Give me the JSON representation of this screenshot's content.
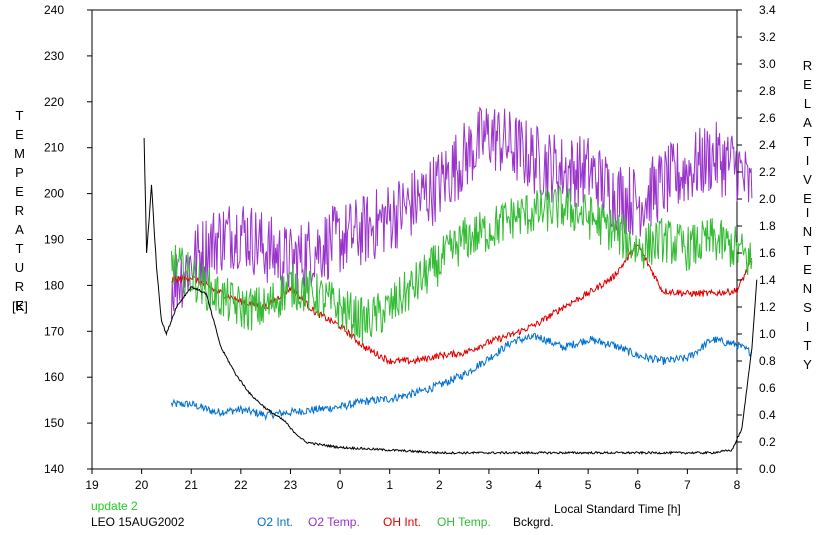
{
  "labels": {
    "left_axis": "TEMPERATURE",
    "left_unit": "[K]",
    "right_axis_1": "RELATIVE",
    "right_axis_2": "INTENSITY",
    "x_axis": "Local Standard Time [h]",
    "update": "update 2",
    "station": "LEO 15AUG2002"
  },
  "colors": {
    "o2_int": "#0070d0",
    "o2_temp": "#9933cc",
    "oh_int": "#e00000",
    "oh_temp": "#33bb33",
    "bckgrd": "#000000",
    "update": "#22cc22"
  },
  "chart_data": {
    "type": "line",
    "x_ticks": [
      "19",
      "20",
      "21",
      "22",
      "23",
      "0",
      "1",
      "2",
      "3",
      "4",
      "5",
      "6",
      "7",
      "8"
    ],
    "left_ticks": [
      "140",
      "150",
      "160",
      "170",
      "180",
      "190",
      "200",
      "210",
      "220",
      "230",
      "240"
    ],
    "right_ticks": [
      "0.0",
      "0.2",
      "0.4",
      "0.6",
      "0.8",
      "1.0",
      "1.2",
      "1.4",
      "1.6",
      "1.8",
      "2.0",
      "2.2",
      "2.4",
      "2.6",
      "2.8",
      "3.0",
      "3.2",
      "3.4"
    ],
    "xlim": [
      19,
      32
    ],
    "ylim_left": [
      140,
      240
    ],
    "ylim_right": [
      0,
      3.4
    ],
    "series": [
      {
        "name": "O2 Int.",
        "axis": "right",
        "color": "#0070d0",
        "noise": 0.03,
        "x": [
          20.6,
          21,
          21.5,
          22,
          22.5,
          23,
          23.5,
          24,
          24.5,
          25,
          25.5,
          26,
          26.5,
          27,
          27.5,
          28,
          28.5,
          29,
          29.5,
          30,
          30.5,
          31,
          31.5,
          32,
          32.3
        ],
        "y": [
          0.48,
          0.48,
          0.42,
          0.44,
          0.4,
          0.42,
          0.44,
          0.46,
          0.5,
          0.52,
          0.56,
          0.62,
          0.7,
          0.82,
          0.95,
          0.98,
          0.9,
          0.96,
          0.92,
          0.84,
          0.8,
          0.82,
          0.96,
          0.92,
          0.86
        ]
      },
      {
        "name": "O2 Temp.",
        "axis": "left",
        "color": "#9933cc",
        "noise": 8,
        "x": [
          20.6,
          21,
          21.5,
          22,
          22.5,
          23,
          23.5,
          24,
          24.5,
          25,
          25.5,
          26,
          26.5,
          27,
          27.5,
          28,
          28.5,
          29,
          29.5,
          30,
          30.5,
          31,
          31.5,
          32,
          32.3
        ],
        "y": [
          180,
          185,
          190,
          192,
          188,
          185,
          188,
          190,
          192,
          195,
          198,
          202,
          208,
          213,
          210,
          207,
          205,
          205,
          200,
          198,
          202,
          205,
          208,
          206,
          200
        ]
      },
      {
        "name": "OH Int.",
        "axis": "right",
        "color": "#e00000",
        "noise": 0.025,
        "x": [
          20.6,
          21,
          21.5,
          22,
          22.5,
          23,
          23.5,
          24,
          24.5,
          25,
          25.5,
          26,
          26.5,
          27,
          27.5,
          28,
          28.5,
          29,
          29.5,
          30,
          30.5,
          31,
          31.5,
          32,
          32.3
        ],
        "y": [
          1.4,
          1.42,
          1.32,
          1.24,
          1.2,
          1.34,
          1.16,
          1.06,
          0.9,
          0.8,
          0.8,
          0.84,
          0.86,
          0.94,
          1.0,
          1.08,
          1.2,
          1.3,
          1.42,
          1.66,
          1.32,
          1.3,
          1.3,
          1.32,
          1.55
        ]
      },
      {
        "name": "OH Temp.",
        "axis": "left",
        "color": "#33bb33",
        "noise": 5,
        "x": [
          20.6,
          21,
          21.5,
          22,
          22.5,
          23,
          23.5,
          24,
          24.5,
          25,
          25.5,
          26,
          26.5,
          27,
          27.5,
          28,
          28.5,
          29,
          29.5,
          30,
          30.5,
          31,
          31.5,
          32,
          32.3
        ],
        "y": [
          185,
          182,
          178,
          175,
          175,
          180,
          178,
          175,
          172,
          175,
          180,
          185,
          190,
          192,
          195,
          196,
          197,
          195,
          192,
          188,
          190,
          188,
          190,
          188,
          185
        ]
      },
      {
        "name": "Bckgrd.",
        "axis": "right",
        "color": "#000000",
        "noise": 0.008,
        "x": [
          20.05,
          20.1,
          20.2,
          20.3,
          20.4,
          20.5,
          20.7,
          21,
          21.3,
          21.6,
          21.9,
          22.2,
          22.5,
          22.9,
          23,
          23.3,
          23.6,
          24,
          24.5,
          25,
          25.5,
          26,
          26.5,
          27,
          27.5,
          28,
          28.5,
          29,
          29.5,
          30,
          30.5,
          31,
          31.5,
          31.9,
          32.1,
          32.3,
          32.4
        ],
        "y": [
          2.45,
          1.6,
          2.1,
          1.5,
          1.1,
          1.0,
          1.2,
          1.35,
          1.3,
          0.9,
          0.7,
          0.55,
          0.45,
          0.35,
          0.3,
          0.2,
          0.18,
          0.16,
          0.15,
          0.14,
          0.13,
          0.12,
          0.12,
          0.12,
          0.12,
          0.12,
          0.12,
          0.12,
          0.12,
          0.12,
          0.12,
          0.12,
          0.12,
          0.14,
          0.3,
          0.9,
          1.4
        ]
      }
    ]
  },
  "legend": [
    {
      "label": "O2 Int.",
      "color": "#0070d0"
    },
    {
      "label": "O2 Temp.",
      "color": "#9933cc"
    },
    {
      "label": "OH Int.",
      "color": "#e00000"
    },
    {
      "label": "OH Temp.",
      "color": "#33bb33"
    },
    {
      "label": "Bckgrd.",
      "color": "#000000"
    }
  ]
}
